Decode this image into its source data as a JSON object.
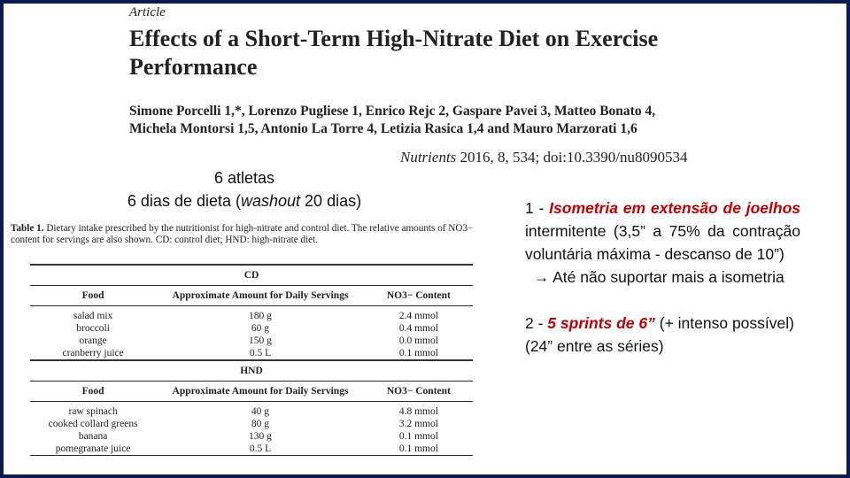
{
  "paper": {
    "article_tag": "Article",
    "title": "Effects of a Short-Term High-Nitrate Diet on Exercise Performance",
    "authors_line1": "Simone Porcelli 1,*, Lorenzo Pugliese 1, Enrico Rejc 2, Gaspare Pavei 3, Matteo Bonato 4,",
    "authors_line2": "Michela Montorsi 1,5, Antonio La Torre 4, Letizia Rasica 1,4 and Mauro Marzorati 1,6",
    "citation_journal": "Nutrients",
    "citation_rest": " 2016, 8, 534; doi:10.3390/nu8090534"
  },
  "summary": {
    "line1": "6 atletas",
    "line2_pre": "6 dias de dieta (",
    "line2_italic": "washout",
    "line2_post": " 20 dias)"
  },
  "table": {
    "caption_label": "Table 1.",
    "caption_text": " Dietary intake prescribed by the nutritionist for high-nitrate and control diet. The relative amounts of NO3− content for servings are also shown. CD: control diet; HND: high-nitrate diet.",
    "columns": [
      "Food",
      "Approximate Amount for Daily Servings",
      "NO3− Content"
    ],
    "groups": [
      {
        "name": "CD",
        "rows": [
          [
            "salad mix",
            "180 g",
            "2.4 mmol"
          ],
          [
            "broccoli",
            "60 g",
            "0.4 mmol"
          ],
          [
            "orange",
            "150 g",
            "0.0 mmol"
          ],
          [
            "cranberry juice",
            "0.5 L",
            "0.1 mmol"
          ]
        ]
      },
      {
        "name": "HND",
        "rows": [
          [
            "raw spinach",
            "40 g",
            "4.8 mmol"
          ],
          [
            "cooked collard greens",
            "80 g",
            "3.2 mmol"
          ],
          [
            "banana",
            "130 g",
            "0.1 mmol"
          ],
          [
            "pomegranate juice",
            "0.5 L",
            "0.1 mmol"
          ]
        ]
      }
    ]
  },
  "protocol": {
    "item1_prefix": "1 - ",
    "item1_highlight": "Isometria em extensão de joelhos",
    "item1_rest": " intermitente (3,5” a 75% da contração voluntária máxima - descanso de 10”)",
    "item1_arrow": "→",
    "item1_followup": " Até não suportar mais a isometria",
    "item2_prefix": "2 - ",
    "item2_highlight": "5 sprints de 6”",
    "item2_rest": " (+ intenso possível)",
    "item2_rest2": "(24” entre as séries)"
  },
  "colors": {
    "frame": "#0b1b4d",
    "highlight": "#c00000"
  }
}
